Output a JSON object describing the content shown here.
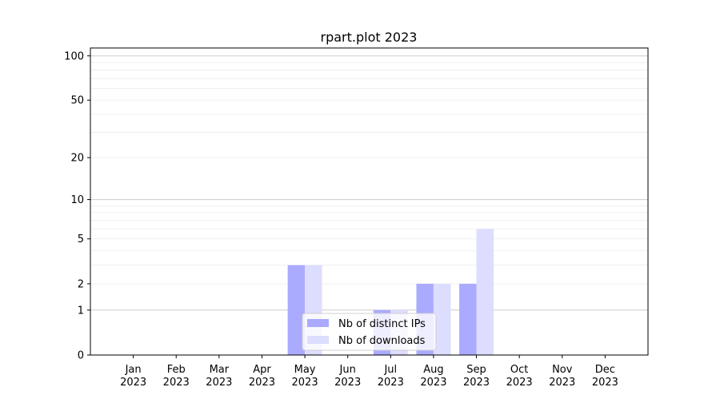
{
  "chart_data": {
    "type": "bar",
    "title": "rpart.plot 2023",
    "xlabel": "",
    "ylabel": "",
    "y_scale": "log(1+y)",
    "ylim": [
      0,
      113
    ],
    "grid": "horizontal major and minor",
    "legend_position": "lower-center",
    "categories": [
      "Jan\n2023",
      "Feb\n2023",
      "Mar\n2023",
      "Apr\n2023",
      "May\n2023",
      "Jun\n2023",
      "Jul\n2023",
      "Aug\n2023",
      "Sep\n2023",
      "Oct\n2023",
      "Nov\n2023",
      "Dec\n2023"
    ],
    "yticks": [
      0,
      1,
      2,
      5,
      10,
      20,
      50,
      100
    ],
    "series": [
      {
        "name": "Nb of distinct IPs",
        "color": "#aaaaff",
        "values": [
          0,
          0,
          0,
          0,
          3,
          0,
          1,
          2,
          2,
          0,
          0,
          0
        ]
      },
      {
        "name": "Nb of downloads",
        "color": "#ddddff",
        "values": [
          0,
          0,
          0,
          0,
          3,
          0,
          1,
          2,
          6,
          0,
          0,
          0
        ]
      }
    ]
  }
}
